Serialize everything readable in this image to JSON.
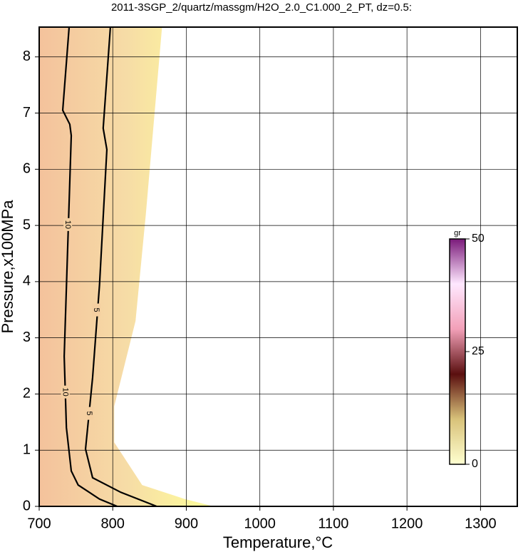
{
  "chart_data": {
    "type": "contour",
    "title": "2011-3SGP_2/quartz/massgm/H2O_2.0_C1.000_2_PT, dz=0.5:",
    "x_label": "Temperature,°C",
    "y_label": "Pressure,x100MPa",
    "xlim": [
      700,
      1350
    ],
    "xticks": [
      700,
      800,
      900,
      1000,
      1100,
      1200,
      1300
    ],
    "ylim": [
      0,
      8.53
    ],
    "yticks": [
      0,
      1,
      2,
      3,
      4,
      5,
      6,
      7,
      8
    ],
    "grid": true,
    "region": {
      "colors": [
        "#f4c29c",
        "#f6dca6",
        "#ffff9a"
      ],
      "x": [
        700,
        867,
        845,
        831,
        802,
        802,
        840,
        898,
        937,
        700
      ],
      "y": [
        8.53,
        8.53,
        5.2,
        3.3,
        1.78,
        1.14,
        0.38,
        0.13,
        0,
        0
      ]
    },
    "contours": [
      {
        "label": "10",
        "x": [
          740.7,
          732,
          741.6,
          743.6,
          734,
          737,
          743.6,
          753,
          782,
          806
        ],
        "y": [
          8.53,
          7.05,
          6.8,
          6.6,
          2.67,
          1.4,
          0.63,
          0.38,
          0.13,
          0
        ]
      },
      {
        "label": "5",
        "x": [
          796.8,
          787,
          792,
          782,
          772.6,
          763,
          772.6,
          811,
          859.7
        ],
        "y": [
          8.53,
          6.73,
          6.35,
          3.94,
          2.29,
          1.02,
          0.51,
          0.25,
          0
        ]
      }
    ],
    "colorbar": {
      "label": "gr",
      "lim": [
        0,
        50
      ],
      "ticks": [
        0,
        25,
        50
      ],
      "colors": [
        "#ffffd0",
        "#d8c27a",
        "#5a0f0f",
        "#f2a0b8",
        "#ffe8ff",
        "#7a1a7a"
      ]
    }
  }
}
